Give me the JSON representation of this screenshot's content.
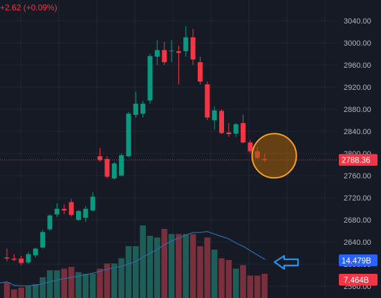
{
  "header": {
    "change_text": "+2.62 (+0.09%)"
  },
  "colors": {
    "background": "#161a25",
    "up": "#089981",
    "down": "#f23645",
    "volume_up": "#1f5e58",
    "volume_down": "#7a2f3c",
    "volume_ma": "#2e6ca8",
    "grid": "#232734",
    "axis_text": "#b2b5be",
    "price_line": "#f23645",
    "highlight_circle": "#f7a21b",
    "arrow": "#2196f3",
    "vol_tag": "#2962ff"
  },
  "annotations": {
    "highlight": "circle around latest candles",
    "arrow": "arrow-left-icon pointing at volume moving average"
  },
  "chart_data": {
    "type": "candlestick",
    "price_axis": {
      "ticks": [
        "3040.00",
        "3000.00",
        "2960.00",
        "2920.00",
        "2880.00",
        "2840.00",
        "2800.00",
        "2760.00",
        "2720.00",
        "2680.00",
        "2640.00",
        "2600.00",
        "2560.00"
      ],
      "ylim": [
        2550,
        3060
      ]
    },
    "last_price": 2788.36,
    "last_price_label": "2788.36",
    "volume_ma_label": "14.479B",
    "last_volume_label": "7.464B",
    "grid": true,
    "candles": [
      {
        "o": 2612,
        "h": 2628,
        "l": 2605,
        "c": 2610
      },
      {
        "o": 2610,
        "h": 2618,
        "l": 2605,
        "c": 2608
      },
      {
        "o": 2610,
        "h": 2615,
        "l": 2598,
        "c": 2602
      },
      {
        "o": 2603,
        "h": 2622,
        "l": 2600,
        "c": 2618
      },
      {
        "o": 2616,
        "h": 2630,
        "l": 2612,
        "c": 2628
      },
      {
        "o": 2630,
        "h": 2662,
        "l": 2628,
        "c": 2658
      },
      {
        "o": 2663,
        "h": 2690,
        "l": 2660,
        "c": 2688
      },
      {
        "o": 2690,
        "h": 2710,
        "l": 2685,
        "c": 2700
      },
      {
        "o": 2700,
        "h": 2708,
        "l": 2690,
        "c": 2697
      },
      {
        "o": 2712,
        "h": 2718,
        "l": 2686,
        "c": 2689
      },
      {
        "o": 2680,
        "h": 2698,
        "l": 2678,
        "c": 2696
      },
      {
        "o": 2684,
        "h": 2705,
        "l": 2676,
        "c": 2700
      },
      {
        "o": 2697,
        "h": 2730,
        "l": 2695,
        "c": 2722
      },
      {
        "o": 2795,
        "h": 2810,
        "l": 2785,
        "c": 2788
      },
      {
        "o": 2790,
        "h": 2795,
        "l": 2755,
        "c": 2758
      },
      {
        "o": 2755,
        "h": 2785,
        "l": 2752,
        "c": 2782
      },
      {
        "o": 2760,
        "h": 2800,
        "l": 2758,
        "c": 2797
      },
      {
        "o": 2795,
        "h": 2875,
        "l": 2793,
        "c": 2872
      },
      {
        "o": 2870,
        "h": 2912,
        "l": 2865,
        "c": 2890
      },
      {
        "o": 2872,
        "h": 2895,
        "l": 2865,
        "c": 2890
      },
      {
        "o": 2896,
        "h": 2980,
        "l": 2890,
        "c": 2976
      },
      {
        "o": 2975,
        "h": 3005,
        "l": 2960,
        "c": 2987
      },
      {
        "o": 2987,
        "h": 3002,
        "l": 2960,
        "c": 2965
      },
      {
        "o": 2985,
        "h": 3005,
        "l": 2965,
        "c": 2986
      },
      {
        "o": 2985,
        "h": 2995,
        "l": 2925,
        "c": 2982
      },
      {
        "o": 2985,
        "h": 3030,
        "l": 2975,
        "c": 3010
      },
      {
        "o": 3010,
        "h": 3025,
        "l": 2960,
        "c": 2970
      },
      {
        "o": 2965,
        "h": 2975,
        "l": 2925,
        "c": 2930
      },
      {
        "o": 2925,
        "h": 2930,
        "l": 2860,
        "c": 2865
      },
      {
        "o": 2860,
        "h": 2885,
        "l": 2843,
        "c": 2878
      },
      {
        "o": 2877,
        "h": 2880,
        "l": 2835,
        "c": 2837
      },
      {
        "o": 2838,
        "h": 2855,
        "l": 2830,
        "c": 2835
      },
      {
        "o": 2836,
        "h": 2855,
        "l": 2830,
        "c": 2853
      },
      {
        "o": 2855,
        "h": 2870,
        "l": 2818,
        "c": 2820
      },
      {
        "o": 2820,
        "h": 2825,
        "l": 2800,
        "c": 2804
      },
      {
        "o": 2804,
        "h": 2812,
        "l": 2790,
        "c": 2792
      },
      {
        "o": 2790,
        "h": 2800,
        "l": 2785,
        "c": 2788
      }
    ],
    "volumes": [
      9,
      5,
      6,
      7,
      8,
      12,
      16,
      16,
      17,
      18,
      15,
      14,
      14,
      17,
      20,
      20,
      23,
      30,
      30,
      42,
      36,
      35,
      40,
      37,
      37,
      37,
      37,
      30,
      35,
      28,
      23,
      22,
      17,
      19,
      13,
      13,
      14
    ]
  }
}
